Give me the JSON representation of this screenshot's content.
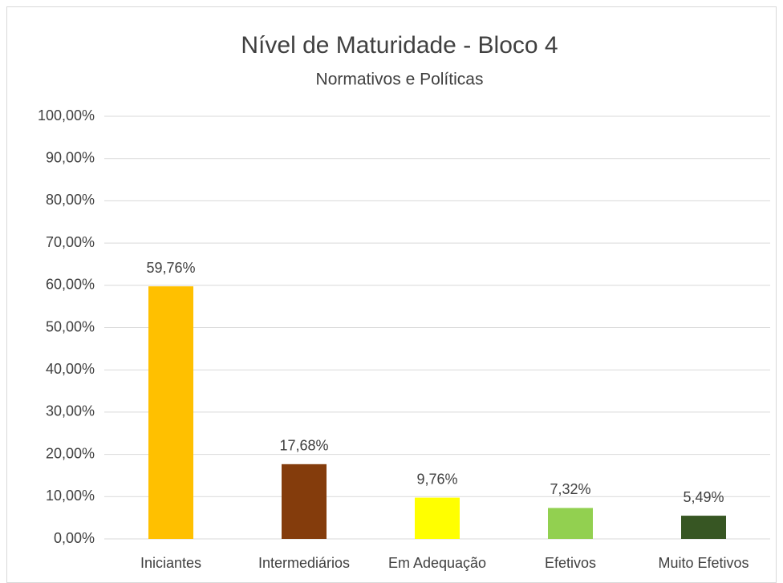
{
  "chart_data": {
    "type": "bar",
    "title": "Nível de Maturidade - Bloco 4",
    "subtitle": "Normativos e Políticas",
    "categories": [
      "Iniciantes",
      "Intermediários",
      "Em Adequação",
      "Efetivos",
      "Muito Efetivos"
    ],
    "values": [
      59.76,
      17.68,
      9.76,
      7.32,
      5.49
    ],
    "value_labels": [
      "59,76%",
      "17,68%",
      "9,76%",
      "7,32%",
      "5,49%"
    ],
    "colors": [
      "#ffc000",
      "#843c0c",
      "#ffff00",
      "#92d050",
      "#375623"
    ],
    "ylim": [
      0,
      100
    ],
    "yticks": [
      {
        "value": 0,
        "label": "0,00%"
      },
      {
        "value": 10,
        "label": "10,00%"
      },
      {
        "value": 20,
        "label": "20,00%"
      },
      {
        "value": 30,
        "label": "30,00%"
      },
      {
        "value": 40,
        "label": "40,00%"
      },
      {
        "value": 50,
        "label": "50,00%"
      },
      {
        "value": 60,
        "label": "60,00%"
      },
      {
        "value": 70,
        "label": "70,00%"
      },
      {
        "value": 80,
        "label": "80,00%"
      },
      {
        "value": 90,
        "label": "90,00%"
      },
      {
        "value": 100,
        "label": "100,00%"
      }
    ],
    "grid": true
  }
}
